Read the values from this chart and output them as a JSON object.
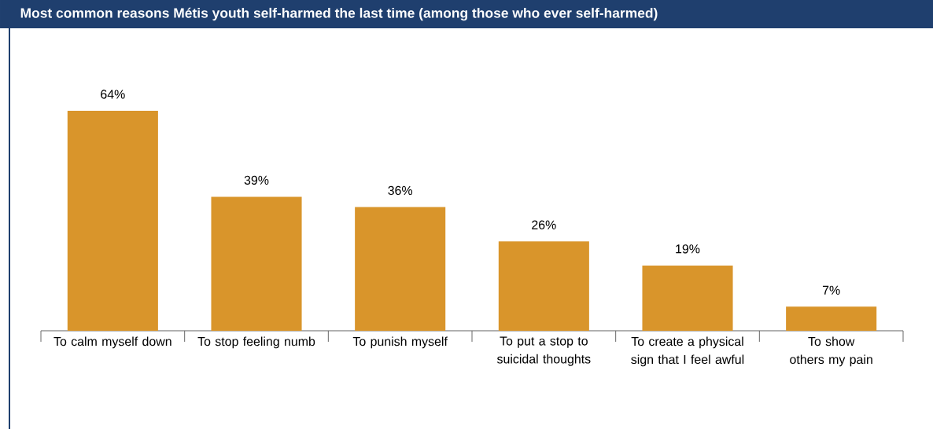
{
  "chart_data": {
    "type": "bar",
    "title": "Most common reasons Métis youth self-harmed the last time (among those who ever self-harmed)",
    "categories": [
      "To calm myself down",
      "To stop feeling numb",
      "To punish myself",
      "To put a stop to suicidal thoughts",
      "To create a physical sign that I feel awful",
      "To show others my pain"
    ],
    "values": [
      64,
      39,
      36,
      26,
      19,
      7
    ],
    "value_labels": [
      "64%",
      "39%",
      "36%",
      "26%",
      "19%",
      "7%"
    ],
    "color": "#d9952b"
  }
}
